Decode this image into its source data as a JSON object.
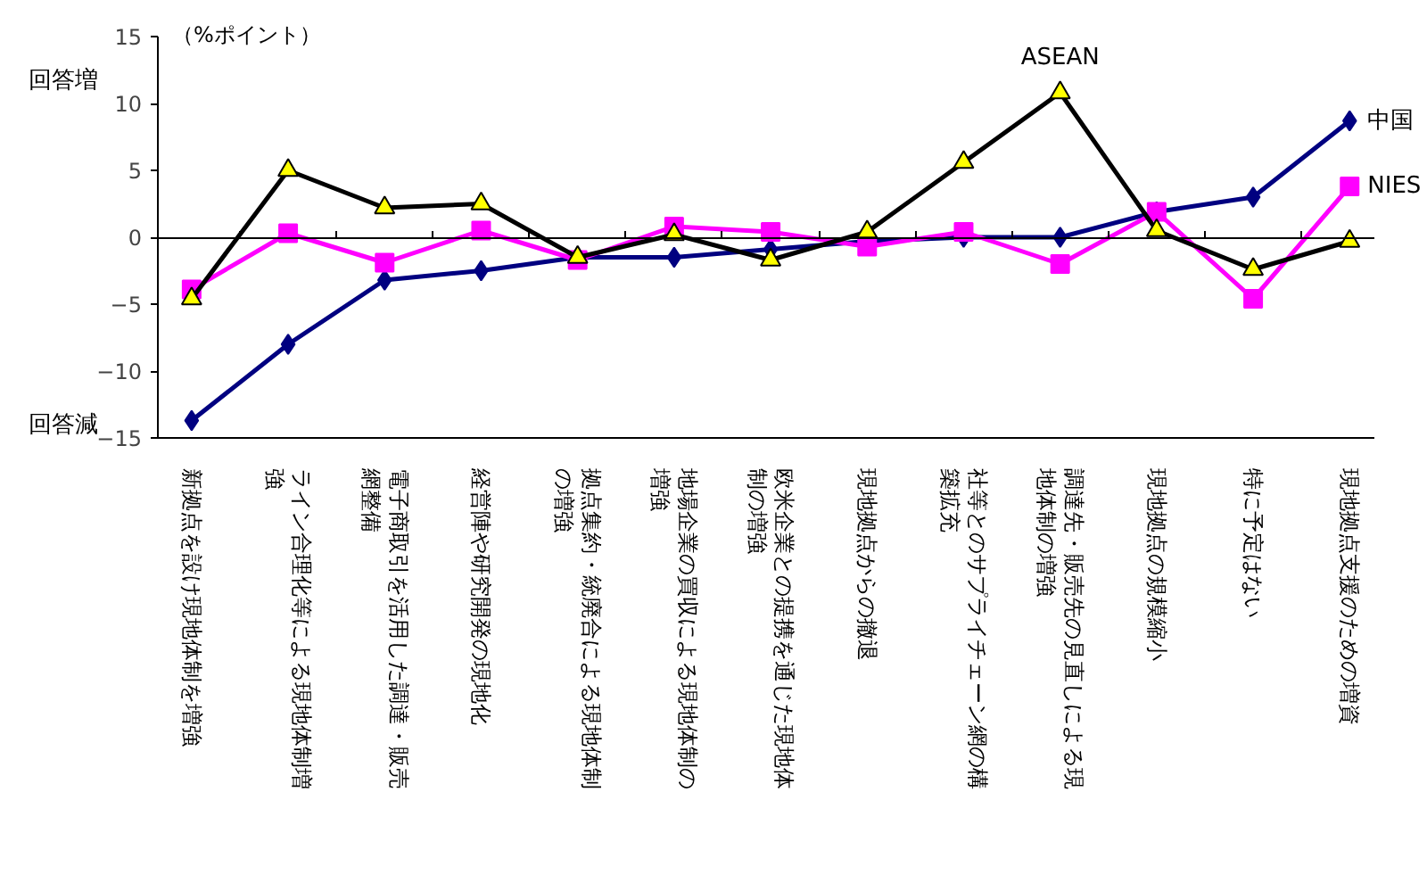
{
  "chart_data": {
    "type": "line",
    "categories": [
      "新拠点を設け現地体制を増強",
      "ライン合理化等による現地体制増強",
      "電子商取引を活用した調達・販売網整備",
      "経営陣や研究開発の現地化",
      "拠点集約・統廃合による現地体制の増強",
      "地場企業の買収による現地体制の増強",
      "欧米企業との提携を通じた現地体制の増強",
      "現地拠点からの撤退",
      "社等とのサプライチェーン網の構築拡充",
      "調達先・販売先の見直しによる現地体制の増強",
      "現地拠点の規模縮小",
      "特に予定はない",
      "現地拠点支援のための増資"
    ],
    "series": [
      {
        "name": "中国",
        "color": "#000080",
        "marker": "diamond",
        "values": [
          -13.7,
          -8.0,
          -3.2,
          -2.5,
          -1.5,
          -1.5,
          -0.9,
          -0.3,
          0,
          0,
          1.9,
          3.0,
          8.7
        ]
      },
      {
        "name": "NIES",
        "color": "#ff00ff",
        "marker": "square",
        "values": [
          -3.9,
          0.3,
          -1.9,
          0.5,
          -1.7,
          0.8,
          0.4,
          -0.7,
          0.4,
          -2.0,
          1.9,
          -4.6,
          3.8
        ]
      },
      {
        "name": "ASEAN",
        "color": "#000000",
        "marker": "triangle",
        "values": [
          -4.6,
          5.0,
          2.2,
          2.5,
          -1.5,
          0.2,
          -1.7,
          0.4,
          5.6,
          10.8,
          0.5,
          -2.4,
          -0.3
        ]
      }
    ],
    "ylim": [
      -15,
      15
    ],
    "yticks": [
      -15,
      -10,
      -5,
      0,
      5,
      10,
      15
    ],
    "annotations": [
      "（%ポイント）",
      "回答増",
      "回答減"
    ],
    "ref_lines": [
      {
        "axis": "y",
        "value": 0
      }
    ],
    "grid": false,
    "legend": false
  }
}
